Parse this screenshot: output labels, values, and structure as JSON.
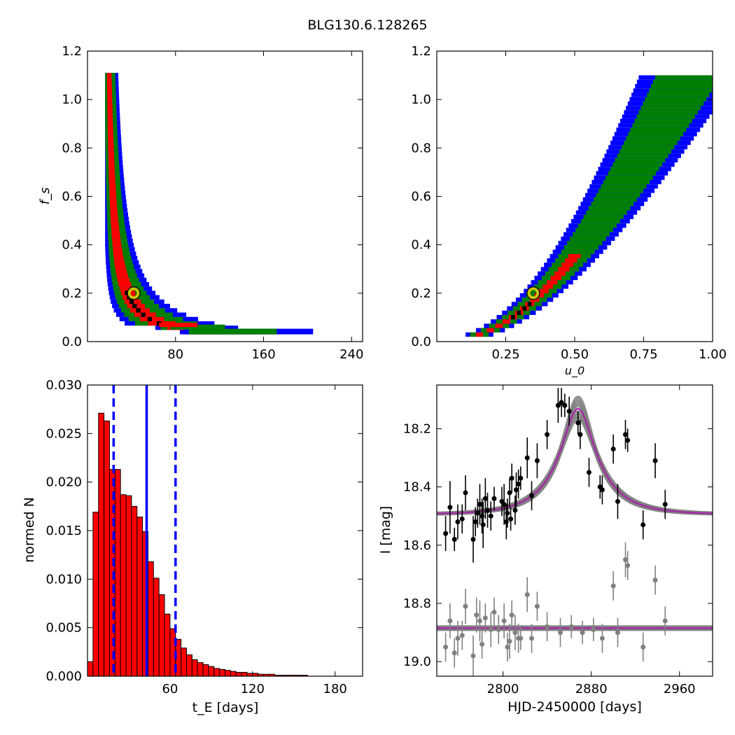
{
  "figure": {
    "title": "BLG130.6.128265"
  },
  "chart_data": [
    {
      "id": "p1",
      "type": "heatmap",
      "title": "",
      "xlabel": "",
      "ylabel": "f_s",
      "xlim": [
        0,
        250
      ],
      "ylim": [
        0,
        1.2
      ],
      "xticks": [
        80,
        160,
        240
      ],
      "yticks": [
        0.0,
        0.2,
        0.4,
        0.6,
        0.8,
        1.0,
        1.2
      ],
      "colors": {
        "outer": "#0000ff",
        "middle": "#008000",
        "inner": "#ff0000",
        "best": "#000000",
        "marker": "#c8c800"
      },
      "best_fit": {
        "x": 42,
        "y": 0.2
      }
    },
    {
      "id": "p2",
      "type": "heatmap",
      "title": "",
      "xlabel": "u_0",
      "ylabel": "",
      "xlim": [
        0,
        1.0
      ],
      "ylim": [
        0,
        1.2
      ],
      "xticks": [
        0.25,
        0.5,
        0.75,
        1.0
      ],
      "yticks": [
        0.0,
        0.2,
        0.4,
        0.6,
        0.8,
        1.0,
        1.2
      ],
      "colors": {
        "outer": "#0000ff",
        "middle": "#008000",
        "inner": "#ff0000",
        "best": "#000000",
        "marker": "#c8c800"
      },
      "best_fit": {
        "x": 0.35,
        "y": 0.2
      }
    },
    {
      "id": "p3",
      "type": "bar",
      "title": "",
      "xlabel": "t_E  [days]",
      "ylabel": "normed N",
      "xlim": [
        0,
        200
      ],
      "ylim": [
        0,
        0.03
      ],
      "xticks": [
        60,
        120,
        180
      ],
      "yticks": [
        0.0,
        0.005,
        0.01,
        0.015,
        0.02,
        0.025,
        0.03
      ],
      "bin_start": 0,
      "bin_width": 4,
      "values": [
        0.0015,
        0.0169,
        0.0271,
        0.0263,
        0.0213,
        0.0213,
        0.0187,
        0.0186,
        0.0175,
        0.0164,
        0.0149,
        0.0118,
        0.0101,
        0.0084,
        0.0064,
        0.0049,
        0.0038,
        0.0029,
        0.0022,
        0.0017,
        0.0014,
        0.0012,
        0.001,
        0.0008,
        0.0007,
        0.0006,
        0.0005,
        0.0004,
        0.0004,
        0.0003,
        0.0003,
        0.0002,
        0.0002,
        0.0002,
        0.0001,
        0.0001,
        0.0001,
        0.0001,
        0.0001,
        0.0001
      ],
      "bar_color": "#ff0000",
      "median": 43,
      "interval": [
        19,
        64
      ],
      "line_color": "#0000ff"
    },
    {
      "id": "p4",
      "type": "scatter",
      "title": "",
      "xlabel": "HJD-2450000 [days]",
      "ylabel": "I [mag]",
      "xlim": [
        2740,
        2990
      ],
      "ylim": [
        19.05,
        18.05
      ],
      "xticks": [
        2800,
        2880,
        2960
      ],
      "yticks": [
        18.2,
        18.4,
        18.6,
        18.8,
        19.0
      ],
      "model": {
        "t0": 2868,
        "u0": 0.35,
        "tE": 42,
        "baseline": 18.495,
        "fs": 0.2
      },
      "model_color": "#aa22aa",
      "spread_color": "#808080",
      "residual_offset": 18.885,
      "data_points": [
        {
          "t": 2748,
          "mag": 18.56,
          "err": 0.06
        },
        {
          "t": 2752,
          "mag": 18.47,
          "err": 0.09
        },
        {
          "t": 2756,
          "mag": 18.58,
          "err": 0.04
        },
        {
          "t": 2759,
          "mag": 18.52,
          "err": 0.06
        },
        {
          "t": 2763,
          "mag": 18.51,
          "err": 0.05
        },
        {
          "t": 2766,
          "mag": 18.42,
          "err": 0.06
        },
        {
          "t": 2773,
          "mag": 18.58,
          "err": 0.08
        },
        {
          "t": 2775,
          "mag": 18.52,
          "err": 0.05
        },
        {
          "t": 2777,
          "mag": 18.49,
          "err": 0.05
        },
        {
          "t": 2779,
          "mag": 18.46,
          "err": 0.07
        },
        {
          "t": 2781,
          "mag": 18.5,
          "err": 0.06
        },
        {
          "t": 2782,
          "mag": 18.53,
          "err": 0.08
        },
        {
          "t": 2784,
          "mag": 18.44,
          "err": 0.07
        },
        {
          "t": 2786,
          "mag": 18.48,
          "err": 0.06
        },
        {
          "t": 2789,
          "mag": 18.5,
          "err": 0.05
        },
        {
          "t": 2792,
          "mag": 18.44,
          "err": 0.04
        },
        {
          "t": 2799,
          "mag": 18.45,
          "err": 0.05
        },
        {
          "t": 2801,
          "mag": 18.46,
          "err": 0.07
        },
        {
          "t": 2803,
          "mag": 18.52,
          "err": 0.06
        },
        {
          "t": 2804,
          "mag": 18.49,
          "err": 0.05
        },
        {
          "t": 2806,
          "mag": 18.42,
          "err": 0.05
        },
        {
          "t": 2807,
          "mag": 18.51,
          "err": 0.04
        },
        {
          "t": 2808,
          "mag": 18.37,
          "err": 0.05
        },
        {
          "t": 2811,
          "mag": 18.48,
          "err": 0.05
        },
        {
          "t": 2812,
          "mag": 18.41,
          "err": 0.06
        },
        {
          "t": 2814,
          "mag": 18.39,
          "err": 0.05
        },
        {
          "t": 2816,
          "mag": 18.37,
          "err": 0.04
        },
        {
          "t": 2822,
          "mag": 18.3,
          "err": 0.07
        },
        {
          "t": 2826,
          "mag": 18.43,
          "err": 0.05
        },
        {
          "t": 2831,
          "mag": 18.31,
          "err": 0.06
        },
        {
          "t": 2840,
          "mag": 18.22,
          "err": 0.05
        },
        {
          "t": 2850,
          "mag": 18.12,
          "err": 0.06
        },
        {
          "t": 2853,
          "mag": 18.11,
          "err": 0.05
        },
        {
          "t": 2856,
          "mag": 18.12,
          "err": 0.04
        },
        {
          "t": 2860,
          "mag": 18.14,
          "err": 0.05
        },
        {
          "t": 2868,
          "mag": 18.18,
          "err": 0.04
        },
        {
          "t": 2870,
          "mag": 18.22,
          "err": 0.05
        },
        {
          "t": 2878,
          "mag": 18.35,
          "err": 0.05
        },
        {
          "t": 2888,
          "mag": 18.4,
          "err": 0.04
        },
        {
          "t": 2890,
          "mag": 18.41,
          "err": 0.05
        },
        {
          "t": 2900,
          "mag": 18.27,
          "err": 0.05
        },
        {
          "t": 2904,
          "mag": 18.45,
          "err": 0.06
        },
        {
          "t": 2911,
          "mag": 18.22,
          "err": 0.05
        },
        {
          "t": 2913,
          "mag": 18.24,
          "err": 0.04
        },
        {
          "t": 2927,
          "mag": 18.53,
          "err": 0.05
        },
        {
          "t": 2938,
          "mag": 18.31,
          "err": 0.06
        },
        {
          "t": 2947,
          "mag": 18.46,
          "err": 0.05
        }
      ],
      "residual_points": [
        {
          "t": 2748,
          "mag": 18.95,
          "err": 0.05
        },
        {
          "t": 2752,
          "mag": 18.86,
          "err": 0.06
        },
        {
          "t": 2756,
          "mag": 18.97,
          "err": 0.05
        },
        {
          "t": 2759,
          "mag": 18.92,
          "err": 0.06
        },
        {
          "t": 2763,
          "mag": 18.91,
          "err": 0.05
        },
        {
          "t": 2766,
          "mag": 18.81,
          "err": 0.06
        },
        {
          "t": 2773,
          "mag": 18.98,
          "err": 0.07
        },
        {
          "t": 2776,
          "mag": 18.84,
          "err": 0.06
        },
        {
          "t": 2779,
          "mag": 18.86,
          "err": 0.07
        },
        {
          "t": 2781,
          "mag": 18.94,
          "err": 0.05
        },
        {
          "t": 2784,
          "mag": 18.85,
          "err": 0.05
        },
        {
          "t": 2789,
          "mag": 18.89,
          "err": 0.06
        },
        {
          "t": 2792,
          "mag": 18.83,
          "err": 0.05
        },
        {
          "t": 2796,
          "mag": 18.89,
          "err": 0.05
        },
        {
          "t": 2801,
          "mag": 18.86,
          "err": 0.06
        },
        {
          "t": 2804,
          "mag": 18.95,
          "err": 0.05
        },
        {
          "t": 2806,
          "mag": 18.93,
          "err": 0.06
        },
        {
          "t": 2808,
          "mag": 18.84,
          "err": 0.05
        },
        {
          "t": 2811,
          "mag": 18.9,
          "err": 0.06
        },
        {
          "t": 2814,
          "mag": 18.92,
          "err": 0.05
        },
        {
          "t": 2816,
          "mag": 18.92,
          "err": 0.04
        },
        {
          "t": 2822,
          "mag": 18.77,
          "err": 0.06
        },
        {
          "t": 2826,
          "mag": 18.92,
          "err": 0.05
        },
        {
          "t": 2831,
          "mag": 18.81,
          "err": 0.05
        },
        {
          "t": 2840,
          "mag": 18.88,
          "err": 0.05
        },
        {
          "t": 2852,
          "mag": 18.9,
          "err": 0.05
        },
        {
          "t": 2862,
          "mag": 18.88,
          "err": 0.04
        },
        {
          "t": 2872,
          "mag": 18.9,
          "err": 0.04
        },
        {
          "t": 2882,
          "mag": 18.89,
          "err": 0.04
        },
        {
          "t": 2890,
          "mag": 18.92,
          "err": 0.05
        },
        {
          "t": 2900,
          "mag": 18.74,
          "err": 0.05
        },
        {
          "t": 2904,
          "mag": 18.9,
          "err": 0.05
        },
        {
          "t": 2911,
          "mag": 18.65,
          "err": 0.06
        },
        {
          "t": 2913,
          "mag": 18.67,
          "err": 0.05
        },
        {
          "t": 2927,
          "mag": 18.95,
          "err": 0.05
        },
        {
          "t": 2938,
          "mag": 18.72,
          "err": 0.05
        },
        {
          "t": 2947,
          "mag": 18.86,
          "err": 0.05
        }
      ],
      "point_color": "#000000",
      "residual_color": "#808080"
    }
  ]
}
